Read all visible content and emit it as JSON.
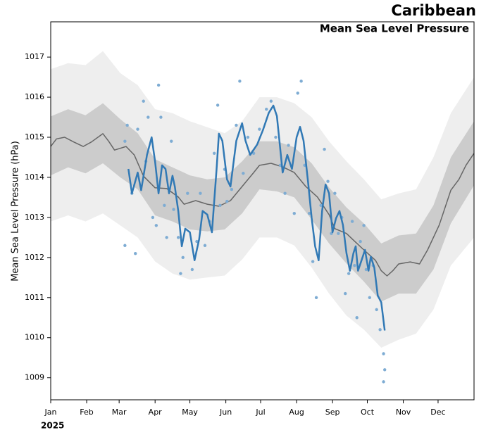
{
  "chart_data": {
    "type": "line",
    "title": "Caribbean",
    "subtitle": "Mean Sea Level Pressure",
    "y_label": "Mean Sea Level Pressure (hPa)",
    "year_label": "2025",
    "xlim": [
      0,
      365
    ],
    "ylim": [
      1008.45,
      1017.88
    ],
    "yticks": [
      1009,
      1010,
      1011,
      1012,
      1013,
      1014,
      1015,
      1016,
      1017
    ],
    "xticks": [
      {
        "value": 0,
        "label": "Jan"
      },
      {
        "value": 31,
        "label": "Feb"
      },
      {
        "value": 59,
        "label": "Mar"
      },
      {
        "value": 90,
        "label": "Apr"
      },
      {
        "value": 120,
        "label": "May"
      },
      {
        "value": 151,
        "label": "Jun"
      },
      {
        "value": 181,
        "label": "Jul"
      },
      {
        "value": 212,
        "label": "Aug"
      },
      {
        "value": 243,
        "label": "Sep"
      },
      {
        "value": 273,
        "label": "Oct"
      },
      {
        "value": 304,
        "label": "Nov"
      },
      {
        "value": 334,
        "label": "Dec"
      }
    ],
    "bands": [
      {
        "color": "#eeeeee",
        "x": [
          0,
          15,
          30,
          45,
          60,
          75,
          90,
          105,
          120,
          135,
          150,
          165,
          180,
          195,
          210,
          225,
          240,
          255,
          270,
          285,
          300,
          315,
          330,
          345,
          365
        ],
        "upper": [
          1016.7,
          1016.85,
          1016.8,
          1017.15,
          1016.6,
          1016.3,
          1015.7,
          1015.6,
          1015.4,
          1015.25,
          1015.1,
          1015.4,
          1016.0,
          1016.0,
          1015.85,
          1015.5,
          1014.9,
          1014.4,
          1013.95,
          1013.45,
          1013.6,
          1013.7,
          1014.5,
          1015.6,
          1016.5
        ],
        "lower": [
          1012.9,
          1013.05,
          1012.9,
          1013.1,
          1012.8,
          1012.5,
          1011.9,
          1011.6,
          1011.45,
          1011.5,
          1011.55,
          1011.95,
          1012.5,
          1012.5,
          1012.3,
          1011.75,
          1011.1,
          1010.55,
          1010.2,
          1009.75,
          1009.95,
          1010.1,
          1010.7,
          1011.8,
          1012.5
        ]
      },
      {
        "color": "#cccccc",
        "x": [
          0,
          15,
          30,
          45,
          60,
          75,
          90,
          105,
          120,
          135,
          150,
          165,
          180,
          195,
          210,
          225,
          240,
          255,
          270,
          285,
          300,
          315,
          330,
          345,
          365
        ],
        "upper": [
          1015.52,
          1015.7,
          1015.55,
          1015.85,
          1015.45,
          1015.1,
          1014.45,
          1014.25,
          1014.05,
          1013.95,
          1014.0,
          1014.4,
          1014.9,
          1014.9,
          1014.75,
          1014.35,
          1013.75,
          1013.25,
          1012.85,
          1012.35,
          1012.55,
          1012.6,
          1013.3,
          1014.5,
          1015.4
        ],
        "lower": [
          1014.05,
          1014.25,
          1014.1,
          1014.35,
          1014.0,
          1013.7,
          1013.05,
          1012.9,
          1012.7,
          1012.65,
          1012.7,
          1013.1,
          1013.7,
          1013.65,
          1013.5,
          1012.95,
          1012.35,
          1011.85,
          1011.4,
          1010.9,
          1011.1,
          1011.1,
          1011.7,
          1012.85,
          1013.8
        ]
      }
    ],
    "points": {
      "color": "#7eacd3",
      "x": [
        64,
        64,
        66,
        70,
        73,
        75,
        80,
        82,
        84,
        88,
        91,
        93,
        95,
        98,
        100,
        104,
        106,
        110,
        112,
        114,
        118,
        122,
        126,
        129,
        133,
        137,
        141,
        144,
        146,
        150,
        152,
        156,
        160,
        163,
        166,
        170,
        175,
        180,
        186,
        190,
        194,
        198,
        202,
        205,
        210,
        213,
        216,
        219,
        223,
        226,
        229,
        233,
        236,
        239,
        242,
        245,
        248,
        251,
        254,
        257,
        260,
        262,
        264,
        267,
        270,
        272,
        275,
        278,
        281,
        284,
        287,
        288,
        287
      ],
      "values": [
        1012.3,
        1014.9,
        1015.3,
        1013.6,
        1012.1,
        1015.2,
        1015.9,
        1014.4,
        1015.5,
        1013.0,
        1012.8,
        1016.3,
        1015.5,
        1013.3,
        1012.5,
        1014.9,
        1013.2,
        1012.5,
        1011.6,
        1012.0,
        1013.6,
        1011.7,
        1012.4,
        1013.6,
        1012.3,
        1012.9,
        1014.6,
        1015.8,
        1013.3,
        1014.2,
        1013.4,
        1013.7,
        1015.3,
        1016.4,
        1014.1,
        1015.0,
        1014.6,
        1015.2,
        1015.7,
        1015.9,
        1015.0,
        1014.3,
        1013.6,
        1014.8,
        1013.1,
        1016.1,
        1016.4,
        1014.3,
        1013.1,
        1011.9,
        1011.0,
        1013.3,
        1014.7,
        1013.9,
        1012.6,
        1013.6,
        1012.6,
        1013.0,
        1011.1,
        1011.6,
        1012.9,
        1011.8,
        1010.5,
        1012.4,
        1012.8,
        1011.7,
        1011.0,
        1011.8,
        1010.7,
        1010.2,
        1009.6,
        1009.2,
        1008.9
      ]
    },
    "series": [
      {
        "color": "#666666",
        "width": 1.5,
        "x": [
          0,
          5,
          12,
          20,
          28,
          35,
          45,
          50,
          55,
          65,
          72,
          80,
          90,
          100,
          110,
          115,
          125,
          135,
          145,
          155,
          165,
          175,
          180,
          190,
          200,
          210,
          220,
          230,
          240,
          245,
          255,
          260,
          270,
          280,
          285,
          290,
          295,
          300,
          310,
          318,
          325,
          335,
          345,
          352,
          358,
          365
        ],
        "values": [
          1014.77,
          1014.96,
          1015.0,
          1014.88,
          1014.77,
          1014.88,
          1015.09,
          1014.9,
          1014.68,
          1014.77,
          1014.56,
          1014.03,
          1013.74,
          1013.72,
          1013.51,
          1013.33,
          1013.42,
          1013.33,
          1013.28,
          1013.42,
          1013.77,
          1014.12,
          1014.3,
          1014.35,
          1014.26,
          1014.12,
          1013.77,
          1013.51,
          1013.07,
          1012.72,
          1012.6,
          1012.46,
          1012.19,
          1011.93,
          1011.67,
          1011.54,
          1011.67,
          1011.84,
          1011.89,
          1011.84,
          1012.19,
          1012.81,
          1013.68,
          1013.95,
          1014.3,
          1014.6
        ]
      },
      {
        "color": "#3179b5",
        "width": 2.5,
        "x": [
          67,
          70,
          75,
          78,
          83,
          87,
          90,
          93,
          96,
          99,
          102,
          105,
          107,
          110,
          113,
          116,
          120,
          124,
          128,
          131,
          135,
          139,
          143,
          145,
          148,
          152,
          155,
          160,
          165,
          168,
          172,
          178,
          183,
          188,
          192,
          195,
          200,
          204,
          208,
          212,
          215,
          218,
          222,
          225,
          228,
          231,
          234,
          237,
          240,
          243,
          246,
          249,
          252,
          255,
          258,
          261,
          263,
          265,
          268,
          271,
          274,
          276,
          279,
          282,
          285,
          288
        ],
        "values": [
          1014.21,
          1013.6,
          1014.12,
          1013.68,
          1014.56,
          1015.0,
          1014.39,
          1013.6,
          1014.3,
          1014.21,
          1013.6,
          1014.04,
          1013.77,
          1013.16,
          1012.28,
          1012.72,
          1012.63,
          1011.93,
          1012.46,
          1013.16,
          1013.07,
          1012.63,
          1014.21,
          1015.09,
          1014.91,
          1013.95,
          1013.77,
          1014.91,
          1015.35,
          1014.91,
          1014.56,
          1014.82,
          1015.18,
          1015.61,
          1015.79,
          1015.53,
          1014.12,
          1014.56,
          1014.21,
          1015.0,
          1015.26,
          1014.91,
          1013.86,
          1012.98,
          1012.28,
          1011.93,
          1013.16,
          1013.82,
          1013.6,
          1012.63,
          1012.98,
          1013.16,
          1012.81,
          1012.11,
          1011.67,
          1012.11,
          1012.28,
          1011.67,
          1011.93,
          1012.19,
          1011.67,
          1012.02,
          1011.75,
          1011.05,
          1010.88,
          1010.18
        ]
      }
    ]
  }
}
